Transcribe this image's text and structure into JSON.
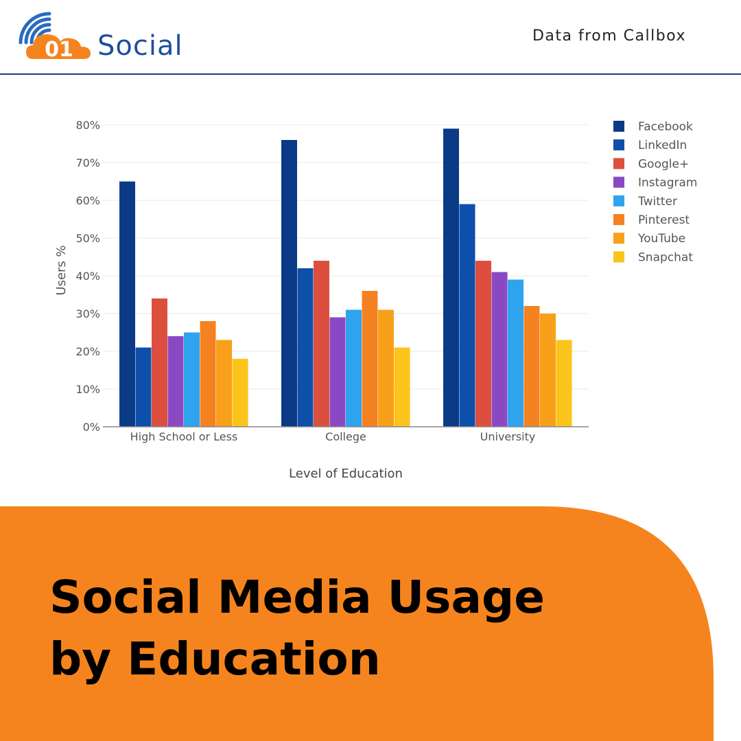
{
  "brand": {
    "logo_number": "01",
    "logo_text": "Social"
  },
  "source_note": "Data from Callbox",
  "headline": {
    "line1": "Social Media Usage",
    "line2": "by Education"
  },
  "colors": {
    "brand_blue": "#1e4f9c",
    "brand_orange": "#f5841f",
    "banner_orange": "#f6841e"
  },
  "chart_data": {
    "type": "bar",
    "title": "",
    "xlabel": "Level of Education",
    "ylabel": "Users %",
    "ylim": [
      0,
      80
    ],
    "yticks": [
      "0%",
      "10%",
      "20%",
      "30%",
      "40%",
      "50%",
      "60%",
      "70%",
      "80%"
    ],
    "grid": true,
    "legend_position": "right",
    "categories": [
      "High School or Less",
      "College",
      "University"
    ],
    "series": [
      {
        "name": "Facebook",
        "color": "#0b3b86",
        "values": [
          65,
          76,
          79
        ]
      },
      {
        "name": "LinkedIn",
        "color": "#0d4fab",
        "values": [
          21,
          42,
          59
        ]
      },
      {
        "name": "Google+",
        "color": "#dc4f3f",
        "values": [
          34,
          44,
          44
        ]
      },
      {
        "name": "Instagram",
        "color": "#8a49c3",
        "values": [
          24,
          29,
          41
        ]
      },
      {
        "name": "Twitter",
        "color": "#2ea3ee",
        "values": [
          25,
          31,
          39
        ]
      },
      {
        "name": "Pinterest",
        "color": "#f58220",
        "values": [
          28,
          36,
          32
        ]
      },
      {
        "name": "YouTube",
        "color": "#f9a01b",
        "values": [
          23,
          31,
          30
        ]
      },
      {
        "name": "Snapchat",
        "color": "#fbc41a",
        "values": [
          18,
          21,
          23
        ]
      }
    ]
  }
}
